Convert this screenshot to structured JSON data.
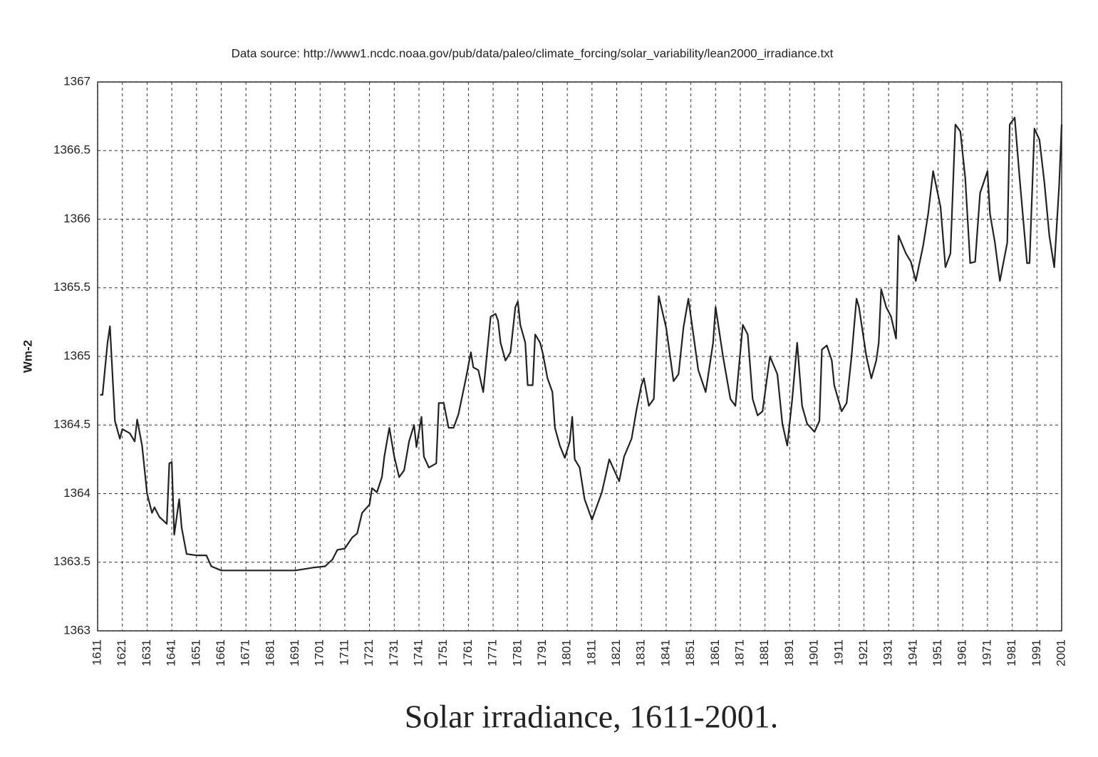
{
  "chart_data": {
    "type": "line",
    "title": "Solar irradiance, 1611-2001.",
    "subtitle": "Data source: http://www1.ncdc.noaa.gov/pub/data/paleo/climate_forcing/solar_variability/lean2000_irradiance.txt",
    "y_label": "Wm-2",
    "color": "#222222",
    "grid": true,
    "xlim": [
      1611,
      2001
    ],
    "xticks": [
      1611,
      1621,
      1631,
      1641,
      1651,
      1661,
      1671,
      1681,
      1691,
      1701,
      1711,
      1721,
      1731,
      1741,
      1751,
      1761,
      1771,
      1781,
      1791,
      1801,
      1811,
      1821,
      1831,
      1841,
      1851,
      1861,
      1871,
      1881,
      1891,
      1901,
      1911,
      1921,
      1931,
      1941,
      1951,
      1961,
      1971,
      1981,
      1991,
      2001
    ],
    "ylim": [
      1363,
      1367
    ],
    "yticks": [
      1363,
      1363.5,
      1364,
      1364.5,
      1365,
      1365.5,
      1366,
      1366.5,
      1367
    ],
    "x": [
      1612,
      1613,
      1615,
      1616,
      1618,
      1620,
      1621,
      1624,
      1626,
      1627,
      1629,
      1631,
      1633,
      1634,
      1636,
      1639,
      1640,
      1641,
      1642,
      1644,
      1645,
      1647,
      1651,
      1654,
      1655,
      1657,
      1661,
      1664,
      1672,
      1687,
      1691,
      1698,
      1703,
      1706,
      1708,
      1711,
      1714,
      1716,
      1718,
      1721,
      1722,
      1724,
      1726,
      1727,
      1729,
      1731,
      1733,
      1735,
      1737,
      1739,
      1740,
      1742,
      1743,
      1745,
      1748,
      1749,
      1751,
      1753,
      1755,
      1757,
      1760,
      1762,
      1763,
      1765,
      1767,
      1770,
      1772,
      1773,
      1774,
      1776,
      1778,
      1780,
      1781,
      1782,
      1784,
      1785,
      1787,
      1788,
      1790,
      1791,
      1793,
      1795,
      1796,
      1798,
      1800,
      1802,
      1803,
      1804,
      1806,
      1808,
      1811,
      1812,
      1815,
      1818,
      1820,
      1822,
      1824,
      1827,
      1829,
      1831,
      1832,
      1834,
      1836,
      1838,
      1841,
      1844,
      1846,
      1848,
      1850,
      1852,
      1854,
      1857,
      1860,
      1861,
      1864,
      1867,
      1869,
      1872,
      1874,
      1876,
      1878,
      1880,
      1883,
      1886,
      1888,
      1890,
      1892,
      1894,
      1896,
      1898,
      1901,
      1903,
      1904,
      1906,
      1908,
      1909,
      1912,
      1914,
      1916,
      1918,
      1919,
      1922,
      1924,
      1926,
      1927,
      1928,
      1930,
      1932,
      1934,
      1935,
      1938,
      1940,
      1942,
      1945,
      1947,
      1949,
      1952,
      1954,
      1956,
      1958,
      1960,
      1962,
      1964,
      1966,
      1968,
      1971,
      1972,
      1974,
      1976,
      1979,
      1980,
      1982,
      1984,
      1987,
      1988,
      1990,
      1992,
      1994,
      1996,
      1998,
      2000,
      2001
    ],
    "values": [
      1364.72,
      1364.72,
      1365.1,
      1365.22,
      1364.53,
      1364.4,
      1364.47,
      1364.44,
      1364.38,
      1364.54,
      1364.35,
      1364.0,
      1363.86,
      1363.9,
      1363.83,
      1363.78,
      1364.22,
      1364.23,
      1363.7,
      1363.96,
      1363.75,
      1363.56,
      1363.55,
      1363.55,
      1363.55,
      1363.47,
      1363.44,
      1363.44,
      1363.44,
      1363.44,
      1363.44,
      1363.46,
      1363.47,
      1363.52,
      1363.59,
      1363.6,
      1363.68,
      1363.71,
      1363.86,
      1363.92,
      1364.04,
      1364.01,
      1364.12,
      1364.27,
      1364.48,
      1364.27,
      1364.12,
      1364.17,
      1364.38,
      1364.5,
      1364.34,
      1364.56,
      1364.27,
      1364.19,
      1364.22,
      1364.66,
      1364.66,
      1364.48,
      1364.48,
      1364.58,
      1364.84,
      1365.03,
      1364.92,
      1364.9,
      1364.74,
      1365.29,
      1365.31,
      1365.26,
      1365.1,
      1364.97,
      1365.03,
      1365.36,
      1365.4,
      1365.23,
      1365.1,
      1364.79,
      1364.79,
      1365.16,
      1365.1,
      1365.03,
      1364.84,
      1364.74,
      1364.48,
      1364.35,
      1364.26,
      1364.38,
      1364.56,
      1364.25,
      1364.19,
      1363.96,
      1363.81,
      1363.86,
      1364.01,
      1364.25,
      1364.17,
      1364.09,
      1364.27,
      1364.4,
      1364.61,
      1364.79,
      1364.84,
      1364.64,
      1364.69,
      1365.44,
      1365.21,
      1364.82,
      1364.87,
      1365.21,
      1365.42,
      1365.16,
      1364.9,
      1364.74,
      1365.1,
      1365.36,
      1365.0,
      1364.69,
      1364.64,
      1365.23,
      1365.16,
      1364.69,
      1364.57,
      1364.6,
      1365.0,
      1364.87,
      1364.51,
      1364.35,
      1364.69,
      1365.1,
      1364.64,
      1364.51,
      1364.45,
      1364.53,
      1365.05,
      1365.08,
      1364.97,
      1364.79,
      1364.6,
      1364.66,
      1365.0,
      1365.42,
      1365.36,
      1365.0,
      1364.84,
      1364.97,
      1365.1,
      1365.49,
      1365.36,
      1365.29,
      1365.13,
      1365.88,
      1365.75,
      1365.69,
      1365.55,
      1365.81,
      1366.04,
      1366.35,
      1366.09,
      1365.65,
      1365.75,
      1366.69,
      1366.64,
      1366.3,
      1365.68,
      1365.69,
      1366.19,
      1366.35,
      1366.04,
      1365.83,
      1365.55,
      1365.83,
      1366.69,
      1366.74,
      1366.3,
      1365.68,
      1365.68,
      1366.66,
      1366.58,
      1366.27,
      1365.88,
      1365.65,
      1366.25,
      1366.69
    ]
  }
}
